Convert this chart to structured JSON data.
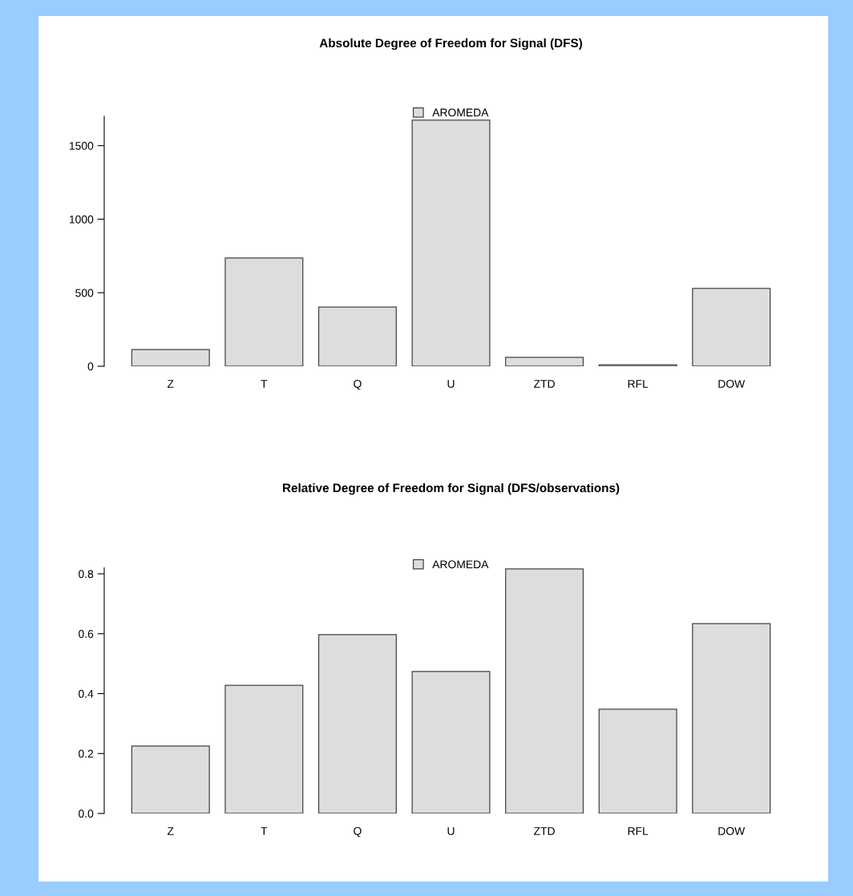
{
  "chart_data": [
    {
      "type": "bar",
      "title": "Absolute Degree of Freedom for Signal (DFS)",
      "categories": [
        "Z",
        "T",
        "Q",
        "U",
        "ZTD",
        "RFL",
        "DOW"
      ],
      "series": [
        {
          "name": "AROMEDA",
          "color": "#dddddd",
          "values": [
            114,
            736,
            403,
            1674,
            60,
            10,
            529
          ]
        }
      ],
      "ylim": [
        0,
        1700
      ],
      "yticks": [
        0,
        500,
        1000,
        1500
      ],
      "grid": false,
      "legend": "top"
    },
    {
      "type": "bar",
      "title": "Relative Degree of Freedom for Signal (DFS/observations)",
      "categories": [
        "Z",
        "T",
        "Q",
        "U",
        "ZTD",
        "RFL",
        "DOW"
      ],
      "series": [
        {
          "name": "AROMEDA",
          "color": "#dddddd",
          "values": [
            0.225,
            0.428,
            0.597,
            0.474,
            0.816,
            0.348,
            0.634
          ]
        }
      ],
      "ylim": [
        0,
        0.82
      ],
      "yticks": [
        {
          "value": 0,
          "label": "0.0"
        },
        0.2,
        0.4,
        0.6,
        0.8
      ],
      "grid": false,
      "legend": "top"
    }
  ]
}
